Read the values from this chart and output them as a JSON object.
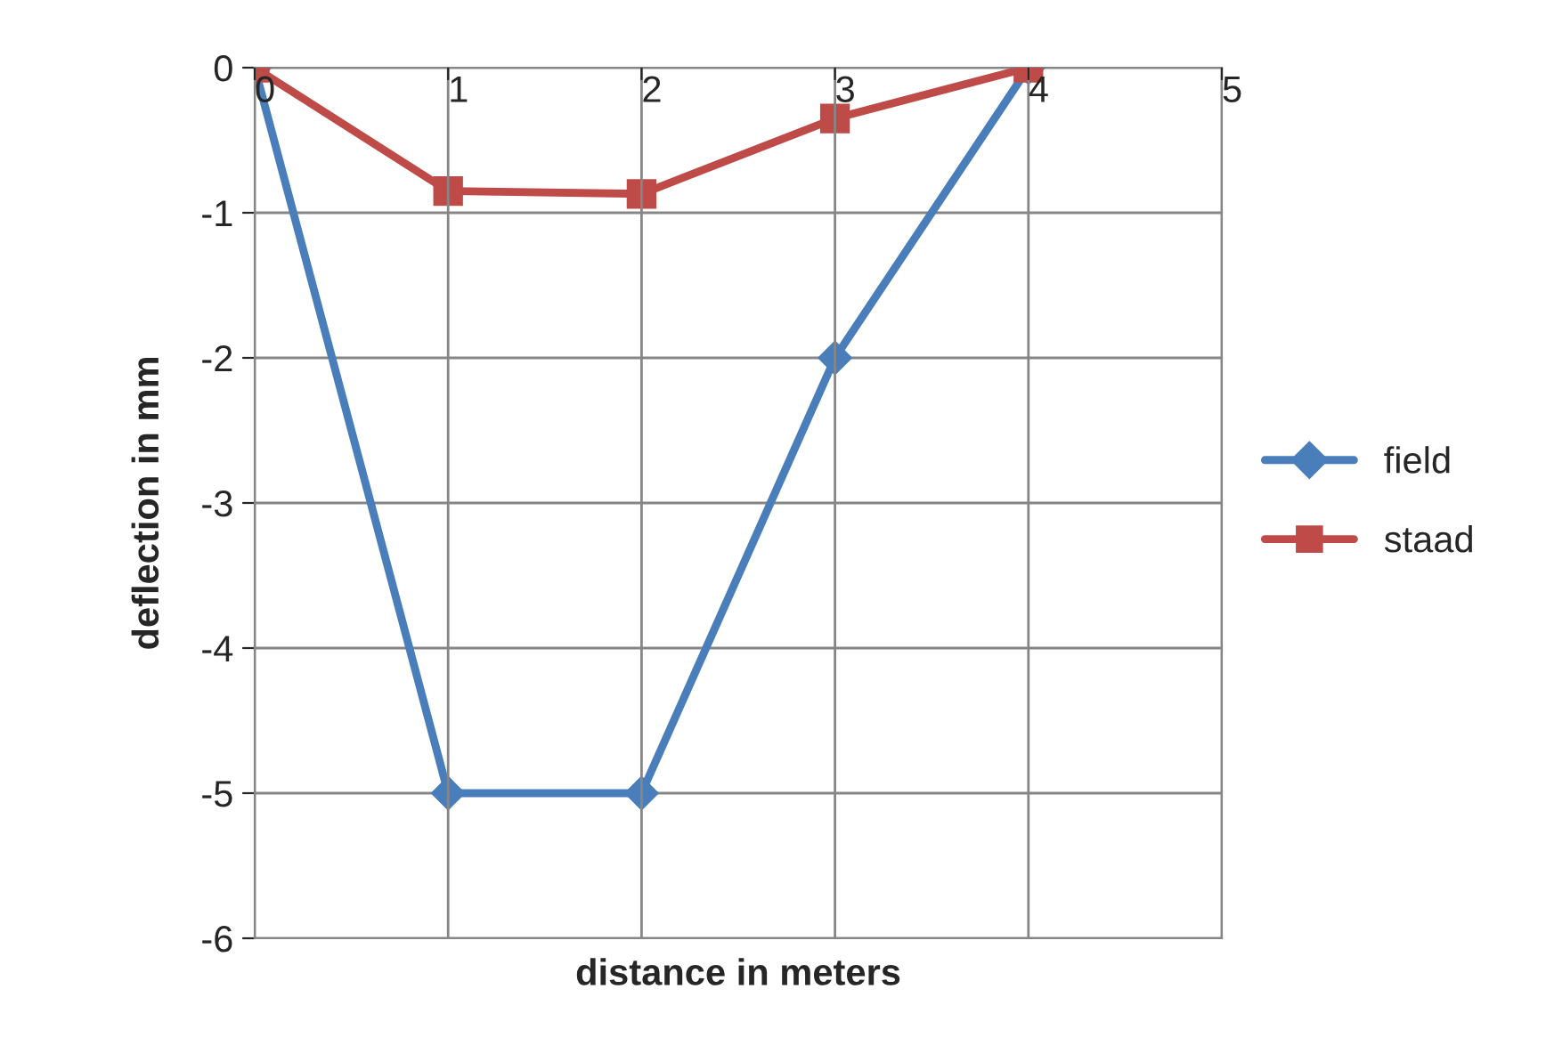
{
  "chart_data": {
    "type": "line",
    "xlabel": "distance in meters",
    "ylabel": "deflection in mm",
    "x": [
      0,
      1,
      2,
      3,
      4
    ],
    "series": [
      {
        "name": "field",
        "color": "#4a7ebb",
        "marker": "diamond",
        "values": [
          0,
          -5,
          -5,
          -2,
          0
        ]
      },
      {
        "name": "staad",
        "color": "#be4b48",
        "marker": "square",
        "values": [
          0,
          -0.85,
          -0.87,
          -0.35,
          0
        ]
      }
    ],
    "xlim": [
      0,
      5
    ],
    "xticks": [
      0,
      1,
      2,
      3,
      4,
      5
    ],
    "ylim": [
      -6,
      0
    ],
    "yticks": [
      -6,
      -5,
      -4,
      -3,
      -2,
      -1,
      0
    ],
    "grid": true,
    "legend": "right"
  }
}
